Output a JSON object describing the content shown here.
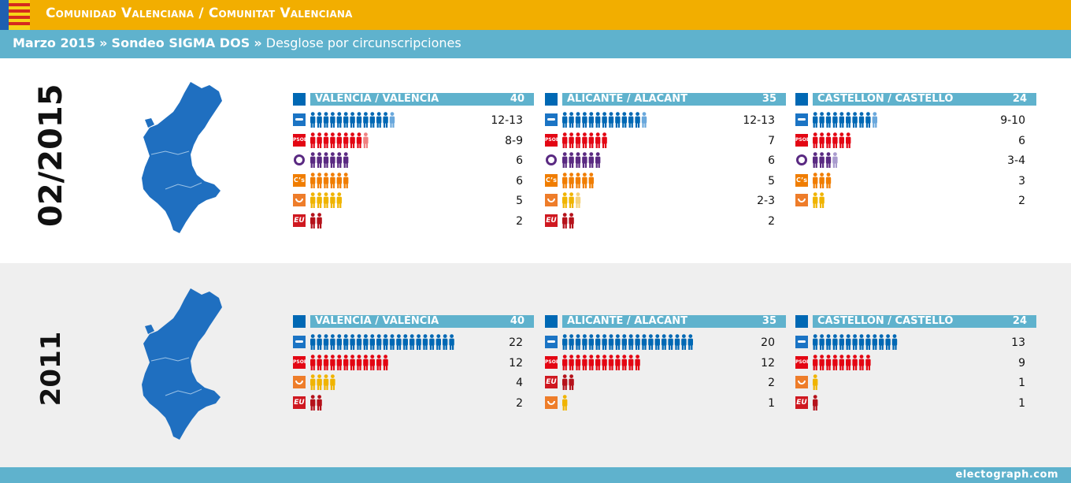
{
  "header": {
    "title": "Comunidad Valenciana / Comunitat Valenciana",
    "sub_date": "Marzo 2015",
    "sub_poll": "Sondeo SIGMA DOS",
    "sub_desc": "Desglose por circunscripciones",
    "sep": "»"
  },
  "footer": {
    "site": "electograph.com"
  },
  "colors": {
    "pp": "#0068b4",
    "pp_light": "#6aa8dc",
    "psoe": "#e30613",
    "psoe_light": "#f08080",
    "podemos": "#5a2a82",
    "podemos_light": "#a99bce",
    "cs": "#f07d00",
    "compromis": "#f0b400",
    "compromis_light": "#f5d27a",
    "eu": "#b5121b"
  },
  "blocks": [
    {
      "label": "02/2015",
      "districts": [
        {
          "name": "VALENCIA / VALÈNCIA",
          "seats": "40",
          "rows": [
            {
              "party": "pp",
              "solid": 12,
              "light": 1,
              "value": "12-13"
            },
            {
              "party": "psoe",
              "solid": 8,
              "light": 1,
              "value": "8-9"
            },
            {
              "party": "podemos",
              "solid": 6,
              "light": 0,
              "value": "6"
            },
            {
              "party": "cs",
              "solid": 6,
              "light": 0,
              "value": "6"
            },
            {
              "party": "compromis",
              "solid": 5,
              "light": 0,
              "value": "5"
            },
            {
              "party": "eu",
              "solid": 2,
              "light": 0,
              "value": "2"
            }
          ]
        },
        {
          "name": "ALICANTE / ALACANT",
          "seats": "35",
          "rows": [
            {
              "party": "pp",
              "solid": 12,
              "light": 1,
              "value": "12-13"
            },
            {
              "party": "psoe",
              "solid": 7,
              "light": 0,
              "value": "7"
            },
            {
              "party": "podemos",
              "solid": 6,
              "light": 0,
              "value": "6"
            },
            {
              "party": "cs",
              "solid": 5,
              "light": 0,
              "value": "5"
            },
            {
              "party": "compromis",
              "solid": 2,
              "light": 1,
              "value": "2-3"
            },
            {
              "party": "eu",
              "solid": 2,
              "light": 0,
              "value": "2"
            }
          ]
        },
        {
          "name": "CASTELLÓN / CASTELLÓ",
          "seats": "24",
          "rows": [
            {
              "party": "pp",
              "solid": 9,
              "light": 1,
              "value": "9-10"
            },
            {
              "party": "psoe",
              "solid": 6,
              "light": 0,
              "value": "6"
            },
            {
              "party": "podemos",
              "solid": 3,
              "light": 1,
              "value": "3-4"
            },
            {
              "party": "cs",
              "solid": 3,
              "light": 0,
              "value": "3"
            },
            {
              "party": "compromis",
              "solid": 2,
              "light": 0,
              "value": "2"
            }
          ]
        }
      ]
    },
    {
      "label": "2011",
      "districts": [
        {
          "name": "VALENCIA / VALÈNCIA",
          "seats": "40",
          "rows": [
            {
              "party": "pp",
              "solid": 22,
              "light": 0,
              "value": "22"
            },
            {
              "party": "psoe",
              "solid": 12,
              "light": 0,
              "value": "12"
            },
            {
              "party": "compromis",
              "solid": 4,
              "light": 0,
              "value": "4"
            },
            {
              "party": "eu",
              "solid": 2,
              "light": 0,
              "value": "2"
            }
          ]
        },
        {
          "name": "ALICANTE / ALACANT",
          "seats": "35",
          "rows": [
            {
              "party": "pp",
              "solid": 20,
              "light": 0,
              "value": "20"
            },
            {
              "party": "psoe",
              "solid": 12,
              "light": 0,
              "value": "12"
            },
            {
              "party": "eu",
              "solid": 2,
              "light": 0,
              "value": "2"
            },
            {
              "party": "compromis",
              "solid": 1,
              "light": 0,
              "value": "1"
            }
          ]
        },
        {
          "name": "CASTELLÓN / CASTELLÓ",
          "seats": "24",
          "rows": [
            {
              "party": "pp",
              "solid": 13,
              "light": 0,
              "value": "13"
            },
            {
              "party": "psoe",
              "solid": 9,
              "light": 0,
              "value": "9"
            },
            {
              "party": "compromis",
              "solid": 1,
              "light": 0,
              "value": "1"
            },
            {
              "party": "eu",
              "solid": 1,
              "light": 0,
              "value": "1"
            }
          ]
        }
      ]
    }
  ]
}
